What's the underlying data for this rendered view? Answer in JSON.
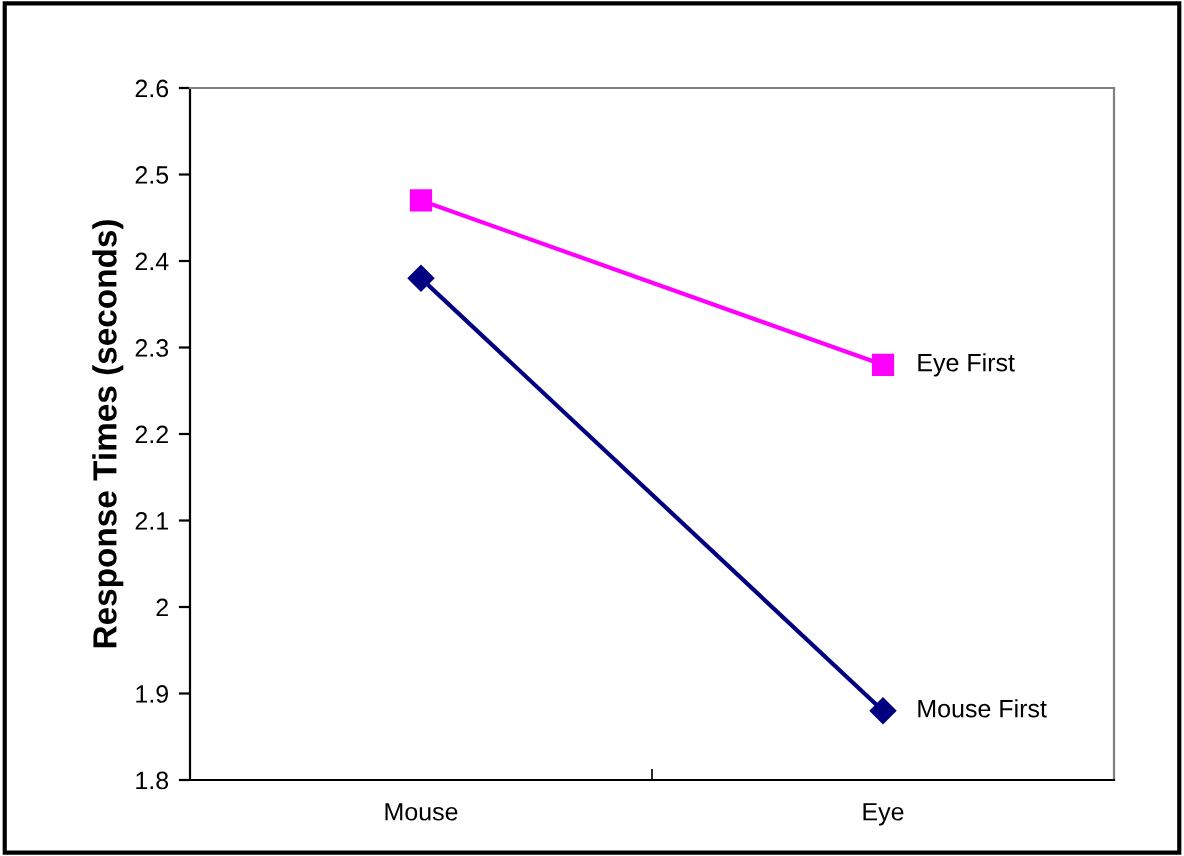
{
  "chart_data": {
    "type": "line",
    "ylabel": "Response Times (seconds)",
    "categories": [
      "Mouse",
      "Eye"
    ],
    "series": [
      {
        "name": "Mouse First",
        "color": "#000080",
        "values": [
          2.38,
          1.88
        ],
        "marker": "diamond"
      },
      {
        "name": "Eye First",
        "color": "#ff00ff",
        "values": [
          2.47,
          2.28
        ],
        "marker": "square"
      }
    ],
    "ylim": [
      1.8,
      2.6
    ],
    "yticks": [
      1.8,
      1.9,
      2.0,
      2.1,
      2.2,
      2.3,
      2.4,
      2.5,
      2.6
    ],
    "grid": false,
    "legend": false,
    "line_style": "solid"
  }
}
